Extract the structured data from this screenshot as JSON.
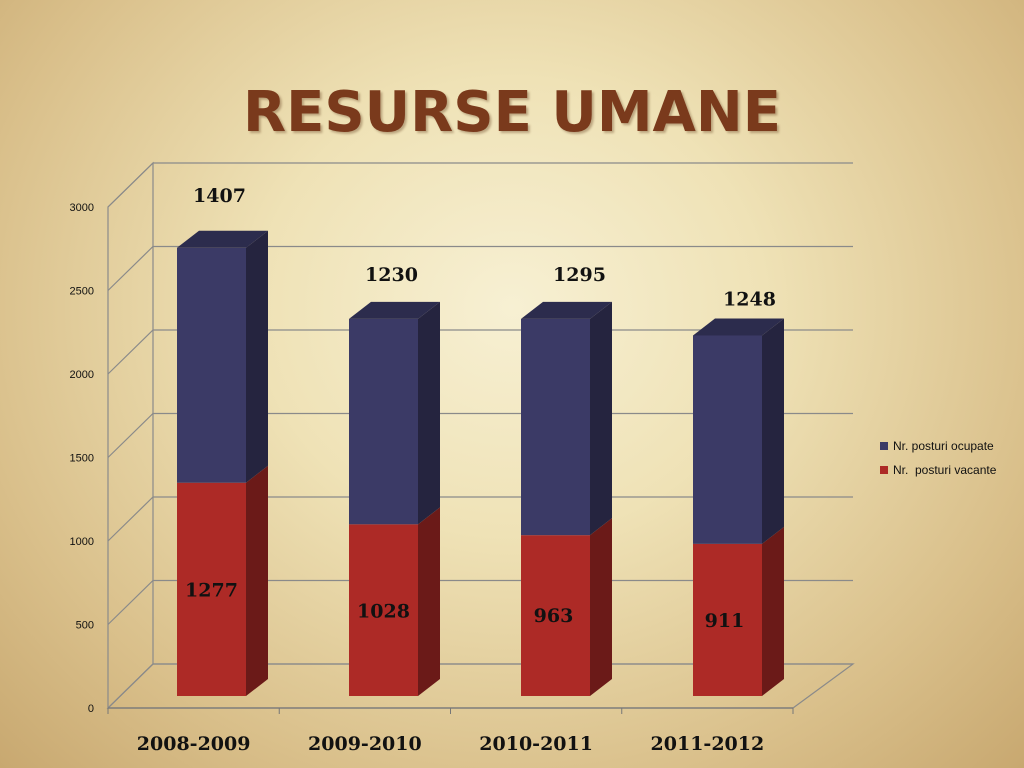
{
  "title": "RESURSE UMANE",
  "chart_data": {
    "type": "bar",
    "stacked": true,
    "categories": [
      "2008-2009",
      "2009-2010",
      "2010-2011",
      "2011-2012"
    ],
    "series": [
      {
        "name": "Nr.  posturi vacante",
        "values": [
          1277,
          1028,
          963,
          911
        ],
        "color": "#ad2a26"
      },
      {
        "name": "Nr. posturi ocupate",
        "values": [
          1407,
          1230,
          1295,
          1248
        ],
        "color": "#3b3a66"
      }
    ],
    "ylim": [
      0,
      3000
    ],
    "yticks": [
      0,
      500,
      1000,
      1500,
      2000,
      2500,
      3000
    ],
    "grid": true,
    "legend_position": "right"
  }
}
